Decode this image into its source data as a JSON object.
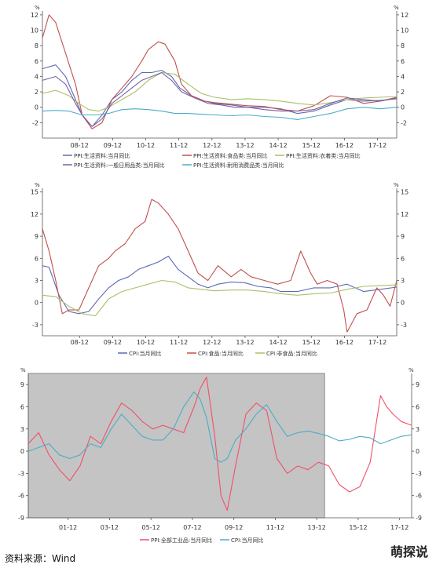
{
  "source": "资料来源：Wind",
  "watermark": "萌探说",
  "chart_data": [
    {
      "type": "line",
      "unit_label": "%",
      "ylim": [
        -4,
        12.5
      ],
      "yticks": [
        -2,
        0,
        2,
        4,
        6,
        8,
        10,
        12
      ],
      "x_range": [
        2007.8,
        2018.5
      ],
      "xtick_labels": [
        "08-12",
        "09-12",
        "10-12",
        "11-12",
        "12-12",
        "13-12",
        "14-12",
        "15-12",
        "16-12",
        "17-12"
      ],
      "xtick_values": [
        2008.92,
        2009.92,
        2010.92,
        2011.92,
        2012.92,
        2013.92,
        2014.92,
        2015.92,
        2016.92,
        2017.92
      ],
      "legend": "bottom",
      "series": [
        {
          "name": "PPI:生活资料:当月同比",
          "color": "#5b6bb2",
          "x": [
            2007.8,
            2008.2,
            2008.5,
            2008.8,
            2009.0,
            2009.3,
            2009.6,
            2009.9,
            2010.2,
            2010.5,
            2010.8,
            2011.1,
            2011.4,
            2011.7,
            2011.95,
            2012.3,
            2012.7,
            2013.0,
            2013.5,
            2014.0,
            2014.5,
            2015.0,
            2015.5,
            2016.0,
            2016.5,
            2017.0,
            2017.5,
            2018.0,
            2018.5
          ],
          "y": [
            5,
            5.5,
            4,
            1,
            -1,
            -2.5,
            -1,
            1,
            2,
            3.5,
            4.5,
            4.5,
            4.8,
            4,
            2.5,
            1.5,
            0.8,
            0.5,
            0.3,
            0,
            0,
            -0.2,
            -0.8,
            -0.5,
            0.3,
            1,
            0.8,
            0.9,
            1.1
          ]
        },
        {
          "name": "PPI:生活资料:食品类:当月同比",
          "color": "#c0504d",
          "x": [
            2007.8,
            2008.0,
            2008.2,
            2008.5,
            2008.8,
            2009.0,
            2009.3,
            2009.6,
            2009.9,
            2010.2,
            2010.5,
            2010.8,
            2011.0,
            2011.3,
            2011.5,
            2011.8,
            2012.0,
            2012.3,
            2012.7,
            2013.0,
            2013.5,
            2014.0,
            2014.5,
            2015.0,
            2015.5,
            2016.0,
            2016.5,
            2017.0,
            2017.5,
            2018.0,
            2018.5
          ],
          "y": [
            9,
            12,
            11,
            7,
            3,
            -1,
            -2.8,
            -2,
            1,
            2.5,
            4,
            6,
            7.5,
            8.5,
            8.2,
            6,
            3,
            1.5,
            0.8,
            0.6,
            0.4,
            0.2,
            0.1,
            -0.3,
            -0.5,
            0.2,
            1.5,
            1.3,
            0.5,
            0.8,
            1.2
          ]
        },
        {
          "name": "PPI:生活资料:衣着类:当月同比",
          "color": "#a8c166",
          "x": [
            2007.8,
            2008.2,
            2008.6,
            2008.9,
            2009.2,
            2009.5,
            2009.8,
            2010.2,
            2010.6,
            2011.0,
            2011.4,
            2011.8,
            2012.2,
            2012.6,
            2013.0,
            2013.5,
            2014.0,
            2014.5,
            2015.0,
            2015.5,
            2016.0,
            2016.5,
            2017.0,
            2017.5,
            2018.0,
            2018.5
          ],
          "y": [
            1.8,
            2.2,
            1.5,
            0.5,
            -0.3,
            -0.5,
            0,
            1,
            2,
            3.5,
            4.5,
            4.3,
            3,
            1.8,
            1.3,
            1,
            1.1,
            1,
            0.8,
            0.5,
            0.3,
            0.6,
            1,
            1.2,
            1.3,
            1.4
          ]
        },
        {
          "name": "PPI:生活资料:一般日用品类:当月同比",
          "color": "#7b5fa4",
          "x": [
            2007.8,
            2008.2,
            2008.5,
            2008.8,
            2009.0,
            2009.3,
            2009.6,
            2009.9,
            2010.2,
            2010.5,
            2010.8,
            2011.1,
            2011.4,
            2011.7,
            2012.0,
            2012.4,
            2012.8,
            2013.2,
            2013.6,
            2014.0,
            2014.5,
            2015.0,
            2015.5,
            2016.0,
            2016.5,
            2017.0,
            2017.5,
            2018.0,
            2018.5
          ],
          "y": [
            3.5,
            4,
            3,
            0.5,
            -1,
            -2.5,
            -1.5,
            0.5,
            1.5,
            2.5,
            3.5,
            4,
            4.5,
            3.5,
            2,
            1.2,
            0.5,
            0.3,
            0,
            0,
            -0.3,
            -0.5,
            -0.5,
            -0.3,
            0.5,
            1.2,
            1,
            0.8,
            1.3
          ]
        },
        {
          "name": "PPI:生活资料:耐用消费品类:当月同比",
          "color": "#4bacc6",
          "x": [
            2007.8,
            2008.2,
            2008.6,
            2009.0,
            2009.4,
            2009.8,
            2010.2,
            2010.6,
            2011.0,
            2011.4,
            2011.8,
            2012.2,
            2012.6,
            2013.0,
            2013.5,
            2014.0,
            2014.5,
            2015.0,
            2015.5,
            2016.0,
            2016.5,
            2017.0,
            2017.5,
            2018.0,
            2018.5
          ],
          "y": [
            -0.5,
            -0.4,
            -0.5,
            -1,
            -1,
            -0.8,
            -0.3,
            -0.2,
            -0.3,
            -0.5,
            -0.8,
            -0.8,
            -0.9,
            -1,
            -1.1,
            -1,
            -1.2,
            -1.3,
            -1.6,
            -1.2,
            -0.8,
            -0.2,
            0,
            -0.2,
            0
          ]
        }
      ]
    },
    {
      "type": "line",
      "unit_label": "%",
      "ylim": [
        -4.5,
        15.5
      ],
      "yticks": [
        -3,
        0,
        3,
        6,
        9,
        12,
        15
      ],
      "x_range": [
        2007.8,
        2018.5
      ],
      "xtick_labels": [
        "08-12",
        "09-12",
        "10-12",
        "11-12",
        "12-12",
        "13-12",
        "14-12",
        "15-12",
        "16-12",
        "17-12"
      ],
      "xtick_values": [
        2008.92,
        2009.92,
        2010.92,
        2011.92,
        2012.92,
        2013.92,
        2014.92,
        2015.92,
        2016.92,
        2017.92
      ],
      "legend": "bottom",
      "series": [
        {
          "name": "CPI:当月同比",
          "color": "#5b6bb2",
          "x": [
            2007.8,
            2008.0,
            2008.3,
            2008.6,
            2008.9,
            2009.2,
            2009.5,
            2009.8,
            2010.1,
            2010.4,
            2010.7,
            2011.0,
            2011.3,
            2011.6,
            2011.9,
            2012.2,
            2012.5,
            2012.8,
            2013.1,
            2013.5,
            2013.9,
            2014.3,
            2014.7,
            2015.0,
            2015.5,
            2016.0,
            2016.5,
            2017.0,
            2017.5,
            2018.0,
            2018.5
          ],
          "y": [
            5,
            4.8,
            1,
            -1.2,
            -1.5,
            -1.2,
            0.5,
            2,
            3,
            3.5,
            4.5,
            5,
            5.5,
            6.3,
            4.5,
            3.5,
            2.5,
            2,
            2.5,
            2.8,
            2.7,
            2.2,
            2,
            1.5,
            1.5,
            2,
            2,
            2.5,
            1.5,
            1.8,
            2.1
          ]
        },
        {
          "name": "CPI:食品:当月同比",
          "color": "#c0504d",
          "x": [
            2007.8,
            2008.0,
            2008.2,
            2008.4,
            2008.6,
            2008.9,
            2009.2,
            2009.5,
            2009.8,
            2010.0,
            2010.3,
            2010.6,
            2010.9,
            2011.1,
            2011.3,
            2011.6,
            2011.9,
            2012.2,
            2012.5,
            2012.8,
            2013.1,
            2013.5,
            2013.8,
            2014.1,
            2014.5,
            2014.9,
            2015.3,
            2015.6,
            2015.9,
            2016.1,
            2016.4,
            2016.7,
            2016.9,
            2017.0,
            2017.3,
            2017.6,
            2017.9,
            2018.1,
            2018.3,
            2018.5
          ],
          "y": [
            10,
            7,
            3,
            -1.5,
            -1,
            -1,
            2,
            5,
            6,
            7,
            8,
            10,
            11,
            14,
            13.5,
            12,
            10,
            7,
            4,
            3,
            5,
            3.5,
            4.5,
            3.5,
            3,
            2.5,
            3,
            7,
            4,
            2.5,
            3,
            2.5,
            -1,
            -4,
            -1.5,
            -1,
            2,
            1,
            -0.5,
            3
          ]
        },
        {
          "name": "CPI:非食品:当月同比",
          "color": "#a8c166",
          "x": [
            2007.8,
            2008.2,
            2008.6,
            2009.0,
            2009.4,
            2009.8,
            2010.2,
            2010.6,
            2011.0,
            2011.4,
            2011.8,
            2012.2,
            2012.6,
            2013.0,
            2013.5,
            2014.0,
            2014.5,
            2015.0,
            2015.5,
            2016.0,
            2016.5,
            2017.0,
            2017.5,
            2018.0,
            2018.5
          ],
          "y": [
            1,
            0.8,
            -0.5,
            -1.5,
            -1.8,
            0.5,
            1.5,
            2,
            2.5,
            3,
            2.8,
            2,
            1.8,
            1.6,
            1.7,
            1.7,
            1.5,
            1.2,
            1,
            1.2,
            1.3,
            1.8,
            2.2,
            2.3,
            2.4
          ]
        }
      ]
    },
    {
      "type": "line",
      "unit_label": "%",
      "ylim": [
        -9,
        10.5
      ],
      "yticks": [
        -9,
        -6,
        -3,
        0,
        3,
        6,
        9
      ],
      "x_range": [
        2000.0,
        2018.5
      ],
      "xtick_labels": [
        "01-12",
        "03-12",
        "05-12",
        "07-12",
        "09-12",
        "11-12",
        "13-12",
        "15-12",
        "17-12"
      ],
      "xtick_values": [
        2001.92,
        2003.92,
        2005.92,
        2007.92,
        2009.92,
        2011.92,
        2013.92,
        2015.92,
        2017.92
      ],
      "shaded_x_range": [
        2000.0,
        2014.3
      ],
      "legend": "bottom",
      "series": [
        {
          "name": "PPI:全部工业品:当月同比",
          "color": "#f0506a",
          "x": [
            2000.0,
            2000.5,
            2001.0,
            2001.5,
            2002.0,
            2002.5,
            2003.0,
            2003.5,
            2004.0,
            2004.5,
            2005.0,
            2005.5,
            2006.0,
            2006.5,
            2007.0,
            2007.5,
            2008.0,
            2008.3,
            2008.6,
            2009.0,
            2009.3,
            2009.6,
            2010.0,
            2010.5,
            2011.0,
            2011.5,
            2012.0,
            2012.5,
            2013.0,
            2013.5,
            2014.0,
            2014.5,
            2015.0,
            2015.5,
            2016.0,
            2016.5,
            2017.0,
            2017.3,
            2017.6,
            2018.0,
            2018.5
          ],
          "y": [
            1,
            2.5,
            -0.5,
            -2.5,
            -4,
            -2,
            2,
            1,
            4,
            6.5,
            5.5,
            4,
            3,
            3.5,
            3,
            2.5,
            6,
            8.5,
            10,
            2,
            -6,
            -8,
            -2,
            5,
            6.5,
            5.5,
            -1,
            -3,
            -2,
            -2.5,
            -1.5,
            -2,
            -4.5,
            -5.5,
            -4.8,
            -1.5,
            7.5,
            6,
            5,
            4,
            3.5
          ]
        },
        {
          "name": "CPI:当月同比",
          "color": "#4bacc6",
          "x": [
            2000.0,
            2000.5,
            2001.0,
            2001.5,
            2002.0,
            2002.5,
            2003.0,
            2003.5,
            2004.0,
            2004.5,
            2005.0,
            2005.5,
            2006.0,
            2006.5,
            2007.0,
            2007.5,
            2008.0,
            2008.3,
            2008.6,
            2009.0,
            2009.3,
            2009.6,
            2010.0,
            2010.5,
            2011.0,
            2011.5,
            2012.0,
            2012.5,
            2013.0,
            2013.5,
            2014.0,
            2014.5,
            2015.0,
            2015.5,
            2016.0,
            2016.5,
            2017.0,
            2017.5,
            2018.0,
            2018.5
          ],
          "y": [
            0,
            0.5,
            1,
            -0.5,
            -1,
            -0.5,
            1,
            0.5,
            3,
            5,
            3.5,
            2,
            1.5,
            1.5,
            3,
            6,
            8,
            7,
            4.5,
            -1,
            -1.5,
            -1,
            1.5,
            3,
            5,
            6.3,
            4,
            2,
            2.5,
            2.7,
            2.4,
            2,
            1.4,
            1.6,
            2,
            1.8,
            1,
            1.5,
            2,
            2.2
          ]
        }
      ]
    }
  ]
}
